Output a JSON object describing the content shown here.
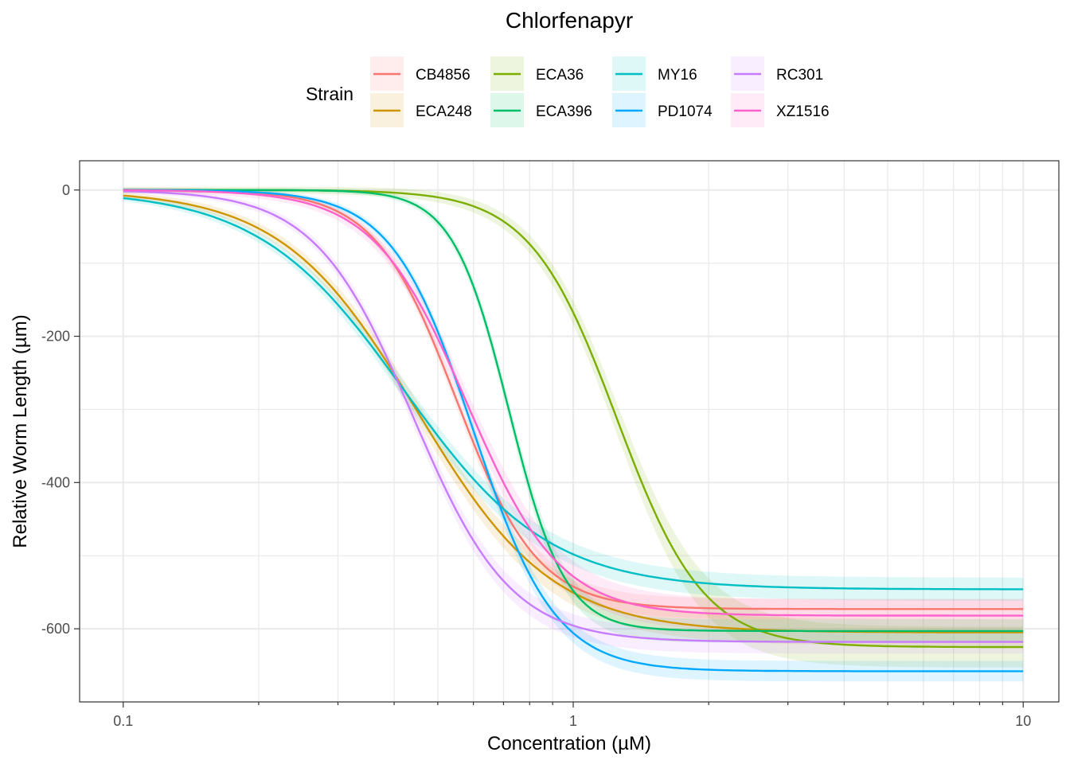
{
  "chart_data": {
    "type": "line",
    "title": "Chlorfenapyr",
    "xlabel": "Concentration (µM)",
    "ylabel": "Relative Worm Length (µm)",
    "x_scale": "log10",
    "xlim": [
      0.08,
      12
    ],
    "ylim": [
      -700,
      40
    ],
    "x_ticks": [
      0.1,
      1,
      10
    ],
    "x_tick_labels": [
      "0.1",
      "1",
      "10"
    ],
    "y_ticks": [
      0,
      -200,
      -400,
      -600
    ],
    "y_tick_labels": [
      "0",
      "-200",
      "-400",
      "-600"
    ],
    "grid": true,
    "legend": {
      "title": "Strain",
      "position": "top",
      "entries": [
        "CB4856",
        "ECA248",
        "ECA36",
        "ECA396",
        "MY16",
        "PD1074",
        "RC301",
        "XZ1516"
      ]
    },
    "x_range": [
      0.1,
      10
    ],
    "ribbon": "95% confidence band around each fitted curve",
    "series": [
      {
        "name": "CB4856",
        "color": "#F8766D",
        "model": "log-logistic",
        "top": 0,
        "bottom": -573,
        "ec50": 0.55,
        "hill": 4.8,
        "band": 14
      },
      {
        "name": "ECA248",
        "color": "#CD9600",
        "model": "log-logistic",
        "top": 0,
        "bottom": -605,
        "ec50": 0.45,
        "hill": 2.9,
        "band": 18
      },
      {
        "name": "ECA36",
        "color": "#7CAE00",
        "model": "log-logistic",
        "top": 0,
        "bottom": -625,
        "ec50": 1.25,
        "hill": 4.5,
        "band": 28
      },
      {
        "name": "ECA396",
        "color": "#00BE67",
        "model": "log-logistic",
        "top": 0,
        "bottom": -603,
        "ec50": 0.72,
        "hill": 7.0,
        "band": 16
      },
      {
        "name": "MY16",
        "color": "#00BFC4",
        "model": "log-logistic",
        "top": 0,
        "bottom": -546,
        "ec50": 0.42,
        "hill": 2.7,
        "band": 16
      },
      {
        "name": "PD1074",
        "color": "#00A9FF",
        "model": "log-logistic",
        "top": 0,
        "bottom": -658,
        "ec50": 0.6,
        "hill": 4.8,
        "band": 14
      },
      {
        "name": "RC301",
        "color": "#C77CFF",
        "model": "log-logistic",
        "top": 0,
        "bottom": -618,
        "ec50": 0.44,
        "hill": 4.0,
        "band": 16
      },
      {
        "name": "XZ1516",
        "color": "#FF61CC",
        "model": "log-logistic",
        "top": 0,
        "bottom": -582,
        "ec50": 0.58,
        "hill": 4.2,
        "band": 22
      }
    ]
  }
}
